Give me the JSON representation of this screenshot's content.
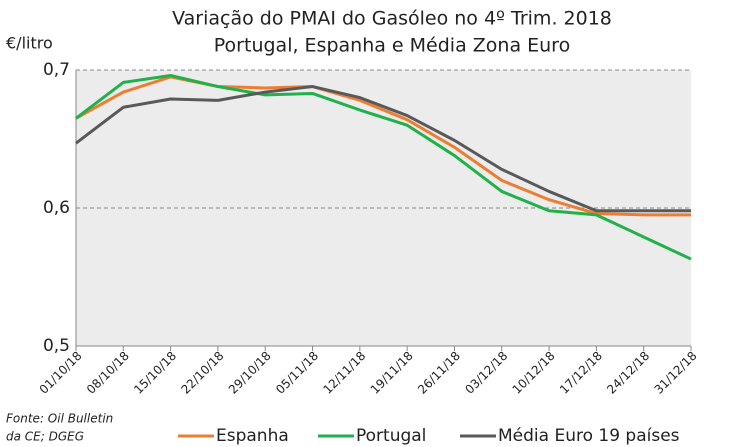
{
  "chart_data": {
    "type": "line",
    "title": "Variação do PMAI do Gasóleo  no 4º Trim. 2018",
    "subtitle": "Portugal, Espanha e Média Zona Euro",
    "y_label": "€/litro",
    "source": [
      "Fonte: Oil Bulletin",
      "da CE; DGEG"
    ],
    "categories": [
      "01/10/18",
      "08/10/18",
      "15/10/18",
      "22/10/18",
      "29/10/18",
      "05/11/18",
      "12/11/18",
      "19/11/18",
      "26/11/18",
      "03/12/18",
      "10/12/18",
      "17/12/18",
      "24/12/18",
      "31/12/18"
    ],
    "series": [
      {
        "name": "Espanha",
        "color": "#ed7d31",
        "values": [
          0.665,
          0.684,
          0.695,
          0.688,
          0.687,
          0.688,
          0.678,
          0.664,
          0.644,
          0.62,
          0.606,
          0.596,
          0.595,
          0.595
        ]
      },
      {
        "name": "Portugal",
        "color": "#1fb24a",
        "values": [
          0.665,
          0.691,
          0.696,
          0.688,
          0.682,
          0.683,
          0.671,
          0.66,
          0.638,
          0.612,
          0.598,
          0.595,
          0.579,
          0.563
        ]
      },
      {
        "name": "Média Euro 19 países",
        "color": "#595959",
        "values": [
          0.647,
          0.673,
          0.679,
          0.678,
          0.684,
          0.688,
          0.68,
          0.667,
          0.649,
          0.628,
          0.612,
          0.598,
          0.598,
          0.598
        ]
      }
    ],
    "ylim": [
      0.5,
      0.7
    ],
    "yticks": [
      {
        "value": 0.5,
        "label": "0,5"
      },
      {
        "value": 0.6,
        "label": "0,6"
      },
      {
        "value": 0.7,
        "label": "0,7"
      }
    ],
    "grid": true,
    "legend": "bottom"
  }
}
